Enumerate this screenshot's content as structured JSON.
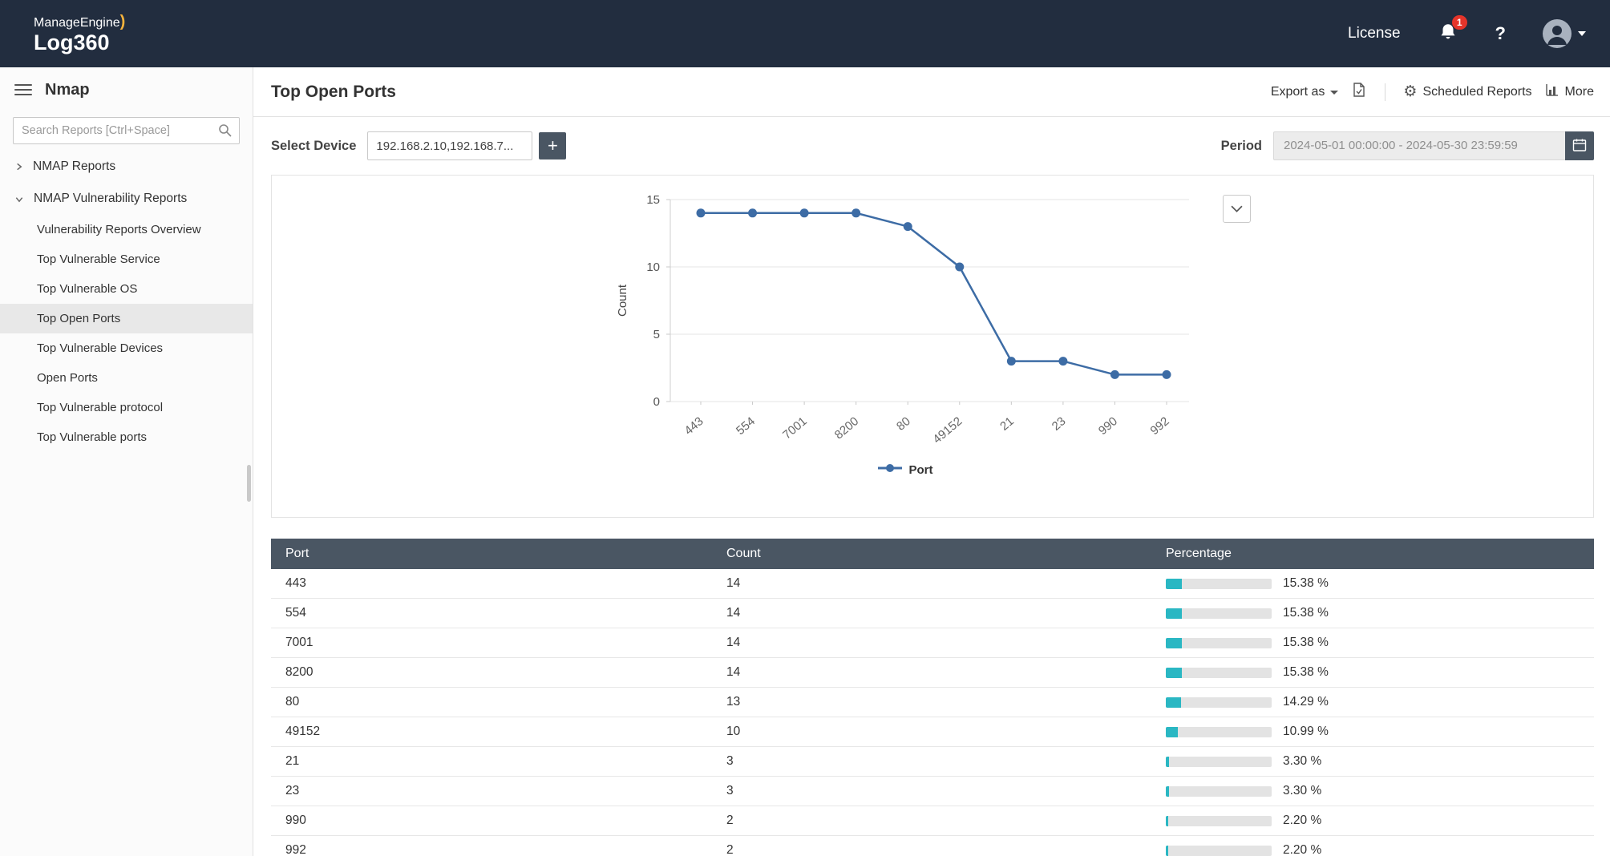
{
  "topbar": {
    "brand_top": "ManageEngine",
    "brand_swoosh": ")",
    "brand_bottom": "Log360",
    "license_label": "License",
    "notification_badge": "1"
  },
  "sidebar": {
    "title": "Nmap",
    "search_placeholder": "Search Reports [Ctrl+Space]",
    "groups": [
      {
        "label": "NMAP Reports",
        "expanded": false
      },
      {
        "label": "NMAP Vulnerability Reports",
        "expanded": true,
        "items": [
          {
            "label": "Vulnerability Reports Overview",
            "selected": false
          },
          {
            "label": "Top Vulnerable Service",
            "selected": false
          },
          {
            "label": "Top Vulnerable OS",
            "selected": false
          },
          {
            "label": "Top Open Ports",
            "selected": true
          },
          {
            "label": "Top Vulnerable Devices",
            "selected": false
          },
          {
            "label": "Open Ports",
            "selected": false
          },
          {
            "label": "Top Vulnerable protocol",
            "selected": false
          },
          {
            "label": "Top Vulnerable ports",
            "selected": false
          }
        ]
      }
    ]
  },
  "report_header": {
    "title": "Top Open Ports",
    "export_label": "Export as",
    "scheduled_label": "Scheduled Reports",
    "more_label": "More"
  },
  "filters": {
    "device_label": "Select Device",
    "device_value": "192.168.2.10,192.168.7...",
    "add_device_label": "+",
    "period_label": "Period",
    "period_value": "2024-05-01 00:00:00 - 2024-05-30 23:59:59"
  },
  "chart_data": {
    "type": "line",
    "categories": [
      "443",
      "554",
      "7001",
      "8200",
      "80",
      "49152",
      "21",
      "23",
      "990",
      "992"
    ],
    "series": [
      {
        "name": "Port",
        "values": [
          14,
          14,
          14,
          14,
          13,
          10,
          3,
          3,
          2,
          2
        ]
      }
    ],
    "title": "",
    "xlabel": "",
    "ylabel": "Count",
    "ylim": [
      0,
      15
    ],
    "yticks": [
      0,
      5,
      10,
      15
    ],
    "legend": [
      "Port"
    ],
    "legend_position": "bottom",
    "grid": true,
    "line_color": "#3d6ca5"
  },
  "table": {
    "columns": [
      "Port",
      "Count",
      "Percentage"
    ],
    "rows": [
      {
        "port": "443",
        "count": "14",
        "percentage": "15.38 %",
        "pct": 15.38
      },
      {
        "port": "554",
        "count": "14",
        "percentage": "15.38 %",
        "pct": 15.38
      },
      {
        "port": "7001",
        "count": "14",
        "percentage": "15.38 %",
        "pct": 15.38
      },
      {
        "port": "8200",
        "count": "14",
        "percentage": "15.38 %",
        "pct": 15.38
      },
      {
        "port": "80",
        "count": "13",
        "percentage": "14.29 %",
        "pct": 14.29
      },
      {
        "port": "49152",
        "count": "10",
        "percentage": "10.99 %",
        "pct": 10.99
      },
      {
        "port": "21",
        "count": "3",
        "percentage": "3.30 %",
        "pct": 3.3
      },
      {
        "port": "23",
        "count": "3",
        "percentage": "3.30 %",
        "pct": 3.3
      },
      {
        "port": "990",
        "count": "2",
        "percentage": "2.20 %",
        "pct": 2.2
      },
      {
        "port": "992",
        "count": "2",
        "percentage": "2.20 %",
        "pct": 2.2
      }
    ],
    "bar_color": "#2ab7c3",
    "header_bg": "#4a5663"
  },
  "icons": {
    "gear": "⚙"
  }
}
